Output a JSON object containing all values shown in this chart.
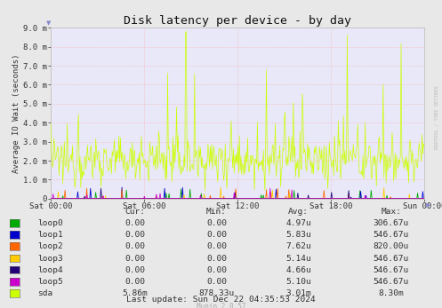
{
  "title": "Disk latency per device - by day",
  "ylabel": "Average IO Wait (seconds)",
  "background_color": "#e8e8e8",
  "plot_bg_color": "#e8e8f8",
  "grid_color": "#ffaaaa",
  "ylim": [
    0,
    0.009
  ],
  "yticks": [
    0.0,
    0.001,
    0.002,
    0.003,
    0.004,
    0.005,
    0.006,
    0.007,
    0.008,
    0.009
  ],
  "ytick_labels": [
    "0",
    "1.0 m",
    "2.0 m",
    "3.0 m",
    "4.0 m",
    "5.0 m",
    "6.0 m",
    "7.0 m",
    "8.0 m",
    "9.0 m"
  ],
  "xtick_labels": [
    "Sat 00:00",
    "Sat 06:00",
    "Sat 12:00",
    "Sat 18:00",
    "Sun 00:00"
  ],
  "legend_entries": [
    {
      "label": "loop0",
      "color": "#00aa00"
    },
    {
      "label": "loop1",
      "color": "#0000cc"
    },
    {
      "label": "loop2",
      "color": "#ff6600"
    },
    {
      "label": "loop3",
      "color": "#ffcc00"
    },
    {
      "label": "loop4",
      "color": "#220077"
    },
    {
      "label": "loop5",
      "color": "#cc00cc"
    },
    {
      "label": "sda",
      "color": "#ccff00"
    }
  ],
  "table_headers": [
    "Cur:",
    "Min:",
    "Avg:",
    "Max:"
  ],
  "table_data": [
    [
      "0.00",
      "0.00",
      "4.97u",
      "306.67u"
    ],
    [
      "0.00",
      "0.00",
      "5.83u",
      "546.67u"
    ],
    [
      "0.00",
      "0.00",
      "7.62u",
      "820.00u"
    ],
    [
      "0.00",
      "0.00",
      "5.14u",
      "546.67u"
    ],
    [
      "0.00",
      "0.00",
      "4.66u",
      "546.67u"
    ],
    [
      "0.00",
      "0.00",
      "5.10u",
      "546.67u"
    ],
    [
      "5.86m",
      "878.33u",
      "3.01m",
      "8.30m"
    ]
  ],
  "last_update": "Last update: Sun Dec 22 04:35:53 2024",
  "munin_version": "Munin 2.0.57",
  "watermark": "RRDTOOL / TOBI OETIKER",
  "num_points": 500
}
